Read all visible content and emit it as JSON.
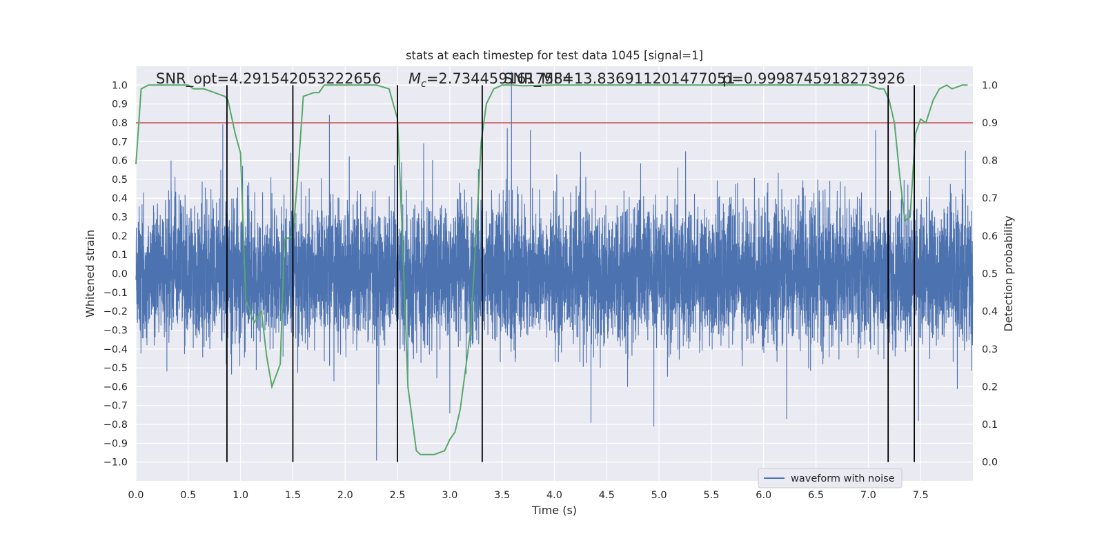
{
  "chart_data": {
    "type": "line",
    "title": "stats at each timestep for test data 1045 [signal=1]",
    "xlabel": "Time (s)",
    "ylabel": "Whitened strain",
    "y2label": "Detection probability",
    "xlim": [
      0,
      8
    ],
    "ylim": [
      -1.1,
      1.1
    ],
    "y2lim": [
      -0.05,
      1.05
    ],
    "x_ticks": [
      "0.0",
      "0.5",
      "1.0",
      "1.5",
      "2.0",
      "2.5",
      "3.0",
      "3.5",
      "4.0",
      "4.5",
      "5.0",
      "5.5",
      "6.0",
      "6.5",
      "7.0",
      "7.5"
    ],
    "y_ticks": [
      "1.0",
      "0.9",
      "0.8",
      "0.7",
      "0.6",
      "0.5",
      "0.4",
      "0.3",
      "0.2",
      "0.1",
      "0.0",
      "−0.1",
      "−0.2",
      "−0.3",
      "−0.4",
      "−0.5",
      "−0.6",
      "−0.7",
      "−0.8",
      "−0.9",
      "−1.0"
    ],
    "y2_ticks": [
      "1.0",
      "0.9",
      "0.8",
      "0.7",
      "0.6",
      "0.5",
      "0.4",
      "0.3",
      "0.2",
      "0.1",
      "0.0"
    ],
    "grid": true,
    "legend": {
      "placement": "lower-right",
      "entries": [
        "waveform with noise"
      ]
    },
    "annotations": [
      "SNR_opt=4.291542053222656",
      "$M_c$=2.7344591617584",
      "SNR_MF=13.836911201477051",
      "p=0.9998745918273926"
    ],
    "series": [
      {
        "name": "waveform with noise",
        "kind": "noise",
        "color": "#4c72b0",
        "samples": 8192,
        "typical_amplitude": 0.42,
        "peak_values": [
          {
            "x": 0.83,
            "y": 0.79
          },
          {
            "x": 1.02,
            "y": 0.57
          },
          {
            "x": 1.48,
            "y": 0.64
          },
          {
            "x": 1.85,
            "y": 0.84
          },
          {
            "x": 2.3,
            "y": -0.99
          },
          {
            "x": 2.6,
            "y": -0.56
          },
          {
            "x": 2.75,
            "y": 0.69
          },
          {
            "x": 3.0,
            "y": -0.74
          },
          {
            "x": 3.55,
            "y": 0.77
          },
          {
            "x": 3.59,
            "y": 1.07
          },
          {
            "x": 3.77,
            "y": 0.76
          },
          {
            "x": 4.35,
            "y": -0.79
          },
          {
            "x": 4.95,
            "y": -0.81
          },
          {
            "x": 6.22,
            "y": -0.77
          },
          {
            "x": 7.07,
            "y": 0.76
          },
          {
            "x": 7.48,
            "y": -0.78
          },
          {
            "x": 7.93,
            "y": 0.65
          }
        ]
      },
      {
        "name": "",
        "kind": "probability",
        "axis": "right",
        "color": "#55a868",
        "points": [
          [
            0.0,
            0.79
          ],
          [
            0.05,
            0.99
          ],
          [
            0.12,
            1.0
          ],
          [
            0.2,
            1.0
          ],
          [
            0.5,
            1.0
          ],
          [
            0.55,
            0.99
          ],
          [
            0.65,
            0.99
          ],
          [
            0.75,
            0.98
          ],
          [
            0.85,
            0.97
          ],
          [
            0.88,
            0.96
          ],
          [
            0.95,
            0.87
          ],
          [
            1.0,
            0.82
          ],
          [
            1.05,
            0.43
          ],
          [
            1.13,
            0.37
          ],
          [
            1.2,
            0.4
          ],
          [
            1.25,
            0.28
          ],
          [
            1.3,
            0.2
          ],
          [
            1.38,
            0.26
          ],
          [
            1.42,
            0.59
          ],
          [
            1.5,
            0.6
          ],
          [
            1.55,
            0.77
          ],
          [
            1.6,
            0.97
          ],
          [
            1.7,
            0.98
          ],
          [
            1.75,
            0.98
          ],
          [
            1.8,
            1.0
          ],
          [
            1.9,
            1.0
          ],
          [
            2.0,
            1.0
          ],
          [
            2.3,
            1.0
          ],
          [
            2.42,
            0.99
          ],
          [
            2.5,
            0.91
          ],
          [
            2.55,
            0.58
          ],
          [
            2.6,
            0.2
          ],
          [
            2.68,
            0.03
          ],
          [
            2.72,
            0.02
          ],
          [
            2.8,
            0.02
          ],
          [
            2.85,
            0.02
          ],
          [
            2.95,
            0.03
          ],
          [
            3.0,
            0.06
          ],
          [
            3.05,
            0.08
          ],
          [
            3.1,
            0.14
          ],
          [
            3.2,
            0.35
          ],
          [
            3.3,
            0.85
          ],
          [
            3.35,
            0.95
          ],
          [
            3.42,
            0.99
          ],
          [
            3.5,
            1.0
          ],
          [
            3.6,
            1.0
          ],
          [
            3.7,
            0.998
          ],
          [
            4.0,
            1.0
          ],
          [
            5.0,
            1.0
          ],
          [
            6.0,
            1.0
          ],
          [
            7.0,
            1.0
          ],
          [
            7.1,
            0.99
          ],
          [
            7.15,
            0.99
          ],
          [
            7.2,
            0.96
          ],
          [
            7.25,
            0.9
          ],
          [
            7.3,
            0.76
          ],
          [
            7.35,
            0.64
          ],
          [
            7.4,
            0.65
          ],
          [
            7.45,
            0.87
          ],
          [
            7.5,
            0.91
          ],
          [
            7.55,
            0.9
          ],
          [
            7.62,
            0.96
          ],
          [
            7.68,
            0.99
          ],
          [
            7.75,
            1.0
          ],
          [
            7.8,
            0.99
          ],
          [
            7.9,
            1.0
          ],
          [
            7.95,
            1.0
          ]
        ]
      }
    ],
    "threshold": {
      "axis": "right",
      "y": 0.9,
      "color": "#c44e52"
    },
    "vlines": [
      0.87,
      1.5,
      2.5,
      3.31,
      7.19,
      7.44
    ],
    "vline_color": "#000000"
  }
}
